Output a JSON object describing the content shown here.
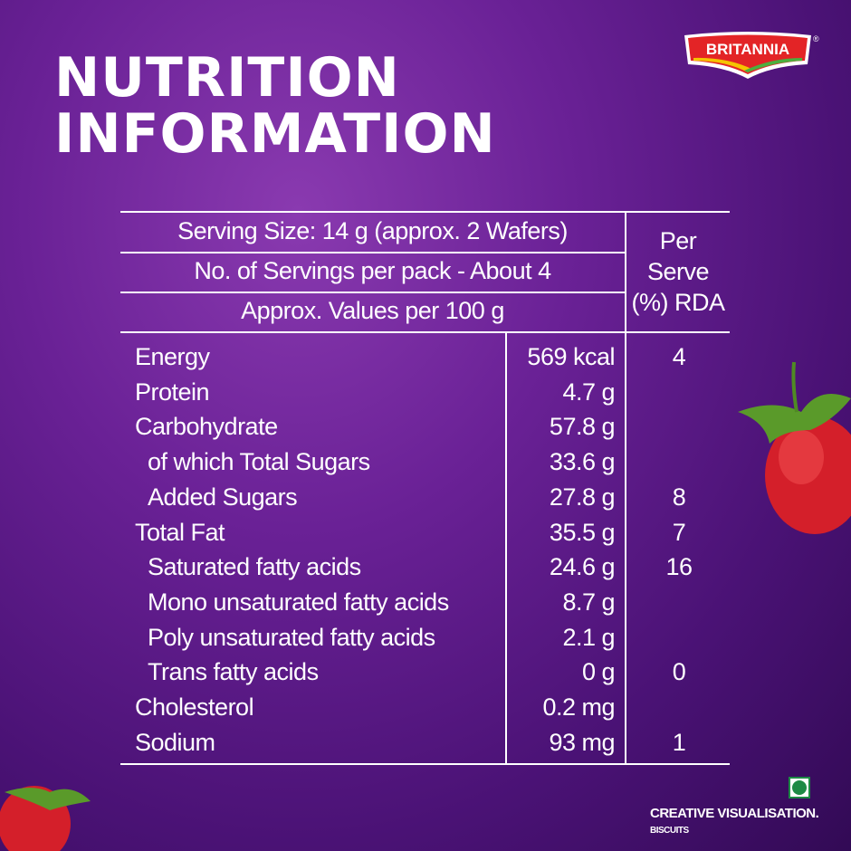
{
  "title": {
    "line1": "NUTRITION",
    "line2": "INFORMATION"
  },
  "brand": {
    "name": "BRITANNIA",
    "registered": "®",
    "red": "#e32426",
    "yellow": "#f5c400",
    "green": "#4caf3e"
  },
  "table": {
    "header": {
      "serving_size": "Serving Size: 14 g (approx. 2 Wafers)",
      "servings_per_pack": "No. of Servings per pack - About 4",
      "values_basis": "Approx. Values per 100 g",
      "rda_header": [
        "Per",
        "Serve",
        "(%) RDA"
      ]
    },
    "rows": [
      {
        "name": "Energy",
        "value": "569 kcal",
        "rda": "4",
        "indent": false
      },
      {
        "name": "Protein",
        "value": "4.7 g",
        "rda": "",
        "indent": false
      },
      {
        "name": "Carbohydrate",
        "value": "57.8 g",
        "rda": "",
        "indent": false
      },
      {
        "name": "of which Total Sugars",
        "value": "33.6 g",
        "rda": "",
        "indent": true
      },
      {
        "name": "Added Sugars",
        "value": "27.8 g",
        "rda": "8",
        "indent": true
      },
      {
        "name": "Total Fat",
        "value": "35.5 g",
        "rda": "7",
        "indent": false
      },
      {
        "name": "Saturated fatty acids",
        "value": "24.6 g",
        "rda": "16",
        "indent": true
      },
      {
        "name": "Mono unsaturated fatty acids",
        "value": "8.7 g",
        "rda": "",
        "indent": true
      },
      {
        "name": "Poly unsaturated fatty acids",
        "value": "2.1 g",
        "rda": "",
        "indent": true
      },
      {
        "name": "Trans fatty acids",
        "value": "0 g",
        "rda": "0",
        "indent": true
      },
      {
        "name": "Cholesterol",
        "value": "0.2 mg",
        "rda": "",
        "indent": false
      },
      {
        "name": "Sodium",
        "value": "93 mg",
        "rda": "1",
        "indent": false
      }
    ]
  },
  "footer": {
    "disclaimer": "CREATIVE VISUALISATION.",
    "category": "BISCUITS",
    "veg_mark_color": "#1e8a45"
  }
}
